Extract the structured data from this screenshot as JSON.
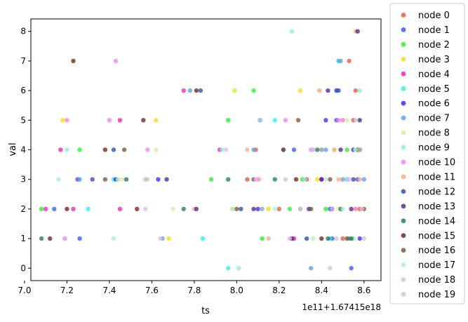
{
  "chart_data": {
    "type": "scatter",
    "xlabel": "ts",
    "ylabel": "val",
    "x_offset_label": "1e11+1.67415e18",
    "xlim": [
      7.03,
      8.68
    ],
    "ylim": [
      -0.42,
      8.42
    ],
    "x_ticks": [
      "7.0",
      "7.2",
      "7.4",
      "7.6",
      "7.8",
      "8.0",
      "8.2",
      "8.4",
      "8.6"
    ],
    "y_ticks": [
      "0",
      "1",
      "2",
      "3",
      "4",
      "5",
      "6",
      "7",
      "8"
    ],
    "grid": false,
    "legend_position": "outside-right",
    "series": [
      {
        "name": "node 0",
        "color": "#f04d36",
        "points": [
          [
            8.48,
            7
          ],
          [
            8.53,
            7
          ],
          [
            8.56,
            6
          ],
          [
            8.2,
            2
          ],
          [
            8.33,
            3
          ],
          [
            8.5,
            1
          ],
          [
            8.58,
            2
          ],
          [
            8.05,
            3
          ],
          [
            8.09,
            4
          ],
          [
            8.55,
            5
          ]
        ]
      },
      {
        "name": "node 1",
        "color": "#3250f0",
        "points": [
          [
            7.26,
            1
          ],
          [
            7.25,
            3
          ],
          [
            8.54,
            0
          ],
          [
            8.27,
            4
          ],
          [
            8.44,
            2
          ],
          [
            8.45,
            1
          ],
          [
            8.57,
            3
          ],
          [
            8.12,
            2
          ],
          [
            8.47,
            5
          ],
          [
            7.14,
            2
          ]
        ]
      },
      {
        "name": "node 2",
        "color": "#1ef01e",
        "points": [
          [
            7.08,
            2
          ],
          [
            7.26,
            4
          ],
          [
            7.96,
            5
          ],
          [
            8.08,
            6
          ],
          [
            8.31,
            3
          ],
          [
            8.12,
            1
          ],
          [
            8.42,
            2
          ],
          [
            8.52,
            4
          ],
          [
            7.88,
            3
          ],
          [
            8.25,
            2
          ]
        ]
      },
      {
        "name": "node 3",
        "color": "#f5df00",
        "points": [
          [
            7.18,
            5
          ],
          [
            7.62,
            5
          ],
          [
            7.99,
            6
          ],
          [
            8.3,
            6
          ],
          [
            7.68,
            1
          ],
          [
            8.38,
            3
          ],
          [
            8.46,
            4
          ],
          [
            8.56,
            2
          ],
          [
            7.44,
            3
          ],
          [
            8.15,
            2
          ]
        ]
      },
      {
        "name": "node 4",
        "color": "#f016b4",
        "points": [
          [
            7.17,
            4
          ],
          [
            7.75,
            6
          ],
          [
            7.45,
            5
          ],
          [
            7.1,
            2
          ],
          [
            7.23,
            2
          ],
          [
            7.45,
            2
          ],
          [
            8.4,
            3
          ],
          [
            8.5,
            5
          ],
          [
            7.92,
            4
          ],
          [
            8.27,
            1
          ]
        ]
      },
      {
        "name": "node 5",
        "color": "#1ef0f0",
        "points": [
          [
            7.96,
            0
          ],
          [
            8.18,
            5
          ],
          [
            8.48,
            7
          ],
          [
            7.84,
            1
          ],
          [
            7.3,
            2
          ],
          [
            7.42,
            3
          ],
          [
            8.36,
            4
          ],
          [
            8.52,
            3
          ],
          [
            7.98,
            2
          ],
          [
            8.44,
            1
          ]
        ]
      },
      {
        "name": "node 6",
        "color": "#3a22ee",
        "points": [
          [
            8.42,
            5
          ],
          [
            8.47,
            6
          ],
          [
            7.43,
            3
          ],
          [
            7.63,
            3
          ],
          [
            8.1,
            2
          ],
          [
            8.55,
            4
          ],
          [
            8.34,
            2
          ],
          [
            8.5,
            3
          ],
          [
            8.22,
            4
          ],
          [
            8.58,
            1
          ]
        ]
      },
      {
        "name": "node 7",
        "color": "#5a98f0",
        "points": [
          [
            7.78,
            6
          ],
          [
            8.35,
            0
          ],
          [
            8.49,
            7
          ],
          [
            7.26,
            3
          ],
          [
            8.08,
            4
          ],
          [
            8.42,
            4
          ],
          [
            8.6,
            3
          ],
          [
            7.65,
            1
          ],
          [
            8.3,
            2
          ],
          [
            8.53,
            1
          ]
        ]
      },
      {
        "name": "node 8",
        "color": "#dfe89b",
        "points": [
          [
            8.39,
            6
          ],
          [
            7.7,
            2
          ],
          [
            7.46,
            3
          ],
          [
            7.62,
            4
          ],
          [
            8.11,
            3
          ],
          [
            8.48,
            2
          ],
          [
            8.52,
            5
          ],
          [
            8.25,
            1
          ],
          [
            8.56,
            4
          ],
          [
            7.98,
            2
          ]
        ]
      },
      {
        "name": "node 9",
        "color": "#86f0cc",
        "points": [
          [
            8.26,
            8
          ],
          [
            7.93,
            4
          ],
          [
            7.2,
            4
          ],
          [
            8.01,
            0
          ],
          [
            8.58,
            6
          ],
          [
            7.58,
            3
          ],
          [
            8.32,
            3
          ],
          [
            8.45,
            2
          ],
          [
            8.55,
            1
          ],
          [
            8.4,
            4
          ]
        ]
      },
      {
        "name": "node 10",
        "color": "#f57af0",
        "points": [
          [
            7.43,
            7
          ],
          [
            7.2,
            5
          ],
          [
            7.4,
            5
          ],
          [
            7.58,
            4
          ],
          [
            8.23,
            5
          ],
          [
            7.19,
            1
          ],
          [
            8.1,
            3
          ],
          [
            8.48,
            5
          ],
          [
            8.56,
            2
          ],
          [
            8.35,
            4
          ]
        ]
      },
      {
        "name": "node 11",
        "color": "#f5ab86",
        "points": [
          [
            8.56,
            8
          ],
          [
            8.39,
            6
          ],
          [
            8.05,
            4
          ],
          [
            7.8,
            2
          ],
          [
            8.48,
            3
          ],
          [
            8.58,
            3
          ],
          [
            8.3,
            2
          ],
          [
            7.57,
            3
          ],
          [
            8.15,
            1
          ],
          [
            8.46,
            4
          ]
        ]
      },
      {
        "name": "node 12",
        "color": "#2448a8",
        "points": [
          [
            7.83,
            6
          ],
          [
            8.48,
            6
          ],
          [
            8.11,
            5
          ],
          [
            7.42,
            4
          ],
          [
            7.32,
            3
          ],
          [
            8.33,
            1
          ],
          [
            8.45,
            2
          ],
          [
            8.55,
            3
          ],
          [
            8.02,
            2
          ],
          [
            8.4,
            4
          ]
        ]
      },
      {
        "name": "node 13",
        "color": "#4c1e90",
        "points": [
          [
            8.57,
            8
          ],
          [
            8.43,
            6
          ],
          [
            7.81,
            2
          ],
          [
            7.67,
            3
          ],
          [
            8.49,
            4
          ],
          [
            8.4,
            3
          ],
          [
            8.26,
            1
          ],
          [
            8.58,
            5
          ],
          [
            8.08,
            2
          ],
          [
            8.54,
            2
          ]
        ]
      },
      {
        "name": "node 14",
        "color": "#1c7a45",
        "points": [
          [
            7.08,
            1
          ],
          [
            7.75,
            2
          ],
          [
            7.48,
            3
          ],
          [
            8.38,
            4
          ],
          [
            8.54,
            1
          ],
          [
            8.18,
            3
          ],
          [
            8.49,
            2
          ],
          [
            7.96,
            3
          ],
          [
            8.57,
            4
          ],
          [
            8.43,
            1
          ]
        ]
      },
      {
        "name": "node 15",
        "color": "#6e1a12",
        "points": [
          [
            7.23,
            7
          ],
          [
            7.81,
            6
          ],
          [
            7.56,
            5
          ],
          [
            7.38,
            4
          ],
          [
            7.12,
            1
          ],
          [
            7.2,
            2
          ],
          [
            7.53,
            2
          ],
          [
            8.4,
            1
          ],
          [
            8.58,
            4
          ],
          [
            8.28,
            3
          ]
        ]
      },
      {
        "name": "node 16",
        "color": "#7a5226",
        "points": [
          [
            8.29,
            5
          ],
          [
            7.47,
            4
          ],
          [
            7.38,
            3
          ],
          [
            8.35,
            2
          ],
          [
            8.08,
            3
          ],
          [
            8.52,
            1
          ],
          [
            8.6,
            2
          ],
          [
            8.44,
            3
          ],
          [
            8.0,
            2
          ],
          [
            8.22,
            4
          ]
        ]
      },
      {
        "name": "node 17",
        "color": "#a8ece0",
        "points": [
          [
            8.01,
            0
          ],
          [
            7.42,
            1
          ],
          [
            7.16,
            3
          ],
          [
            7.44,
            3
          ],
          [
            8.11,
            5
          ],
          [
            8.42,
            3
          ],
          [
            8.56,
            4
          ],
          [
            8.18,
            2
          ],
          [
            8.5,
            2
          ],
          [
            8.36,
            1
          ]
        ]
      },
      {
        "name": "node 18",
        "color": "#eab4f0",
        "points": [
          [
            7.64,
            1
          ],
          [
            7.57,
            2
          ],
          [
            8.09,
            3
          ],
          [
            8.5,
            5
          ],
          [
            8.36,
            4
          ],
          [
            8.53,
            3
          ],
          [
            8.25,
            1
          ],
          [
            8.59,
            2
          ],
          [
            7.95,
            4
          ],
          [
            8.45,
            2
          ]
        ]
      },
      {
        "name": "node 19",
        "color": "#c8c8c8",
        "points": [
          [
            8.44,
            0
          ],
          [
            8.23,
            3
          ],
          [
            8.56,
            5
          ],
          [
            8.6,
            1
          ],
          [
            8.4,
            4
          ],
          [
            8.12,
            2
          ],
          [
            8.5,
            3
          ],
          [
            8.58,
            4
          ],
          [
            8.3,
            2
          ],
          [
            8.47,
            1
          ]
        ]
      }
    ]
  }
}
